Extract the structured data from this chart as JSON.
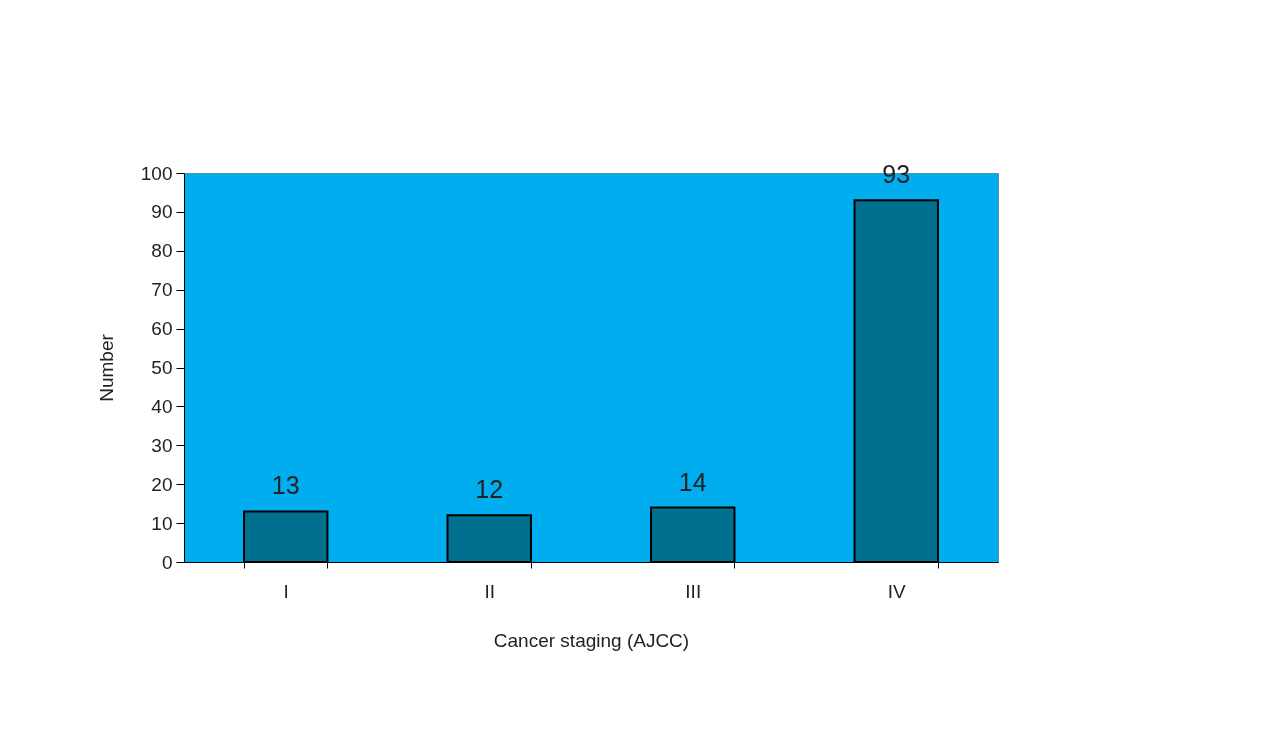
{
  "chart_data": {
    "type": "bar",
    "xlabel": "Cancer staging (AJCC)",
    "ylabel": "Number",
    "categories": [
      "I",
      "II",
      "III",
      "IV"
    ],
    "values": [
      13,
      12,
      14,
      93
    ],
    "color": "#00708f",
    "ylim": [
      0,
      100
    ],
    "yticks": [
      0,
      10,
      20,
      30,
      40,
      50,
      60,
      70,
      80,
      90,
      100
    ],
    "data_labels": true,
    "grid": false
  }
}
